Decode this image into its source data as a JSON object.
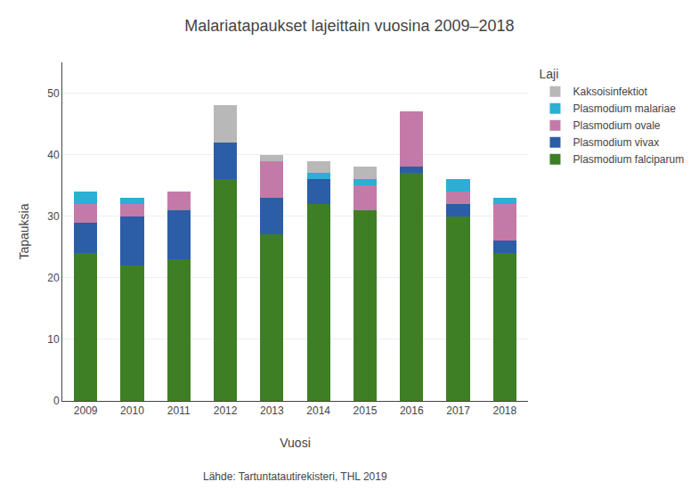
{
  "chart_data": {
    "type": "bar",
    "stacked": true,
    "title": "Malariatapaukset lajeittain vuosina 2009–2018",
    "xlabel": "Vuosi",
    "ylabel": "Tapauksia",
    "legend_title": "Laji",
    "annotations": [
      "Lähde: Tartuntatautirekisteri, THL 2019"
    ],
    "categories": [
      "2009",
      "2010",
      "2011",
      "2012",
      "2013",
      "2014",
      "2015",
      "2016",
      "2017",
      "2018"
    ],
    "series": [
      {
        "name": "Plasmodium falciparum",
        "color": "#3e7f25",
        "values": [
          24,
          22,
          23,
          36,
          27,
          32,
          31,
          37,
          30,
          24
        ]
      },
      {
        "name": "Plasmodium vivax",
        "color": "#2b5ea7",
        "values": [
          5,
          8,
          8,
          6,
          6,
          4,
          0,
          1,
          2,
          2
        ]
      },
      {
        "name": "Plasmodium ovale",
        "color": "#c47aa8",
        "values": [
          3,
          2,
          3,
          0,
          6,
          0,
          4,
          9,
          2,
          6
        ]
      },
      {
        "name": "Plasmodium malariae",
        "color": "#2bafd4",
        "values": [
          2,
          1,
          0,
          0,
          0,
          1,
          1,
          0,
          2,
          1
        ]
      },
      {
        "name": "Kaksoisinfektiot",
        "color": "#b8b8b8",
        "values": [
          0,
          0,
          0,
          6,
          1,
          2,
          2,
          0,
          0,
          0
        ]
      }
    ],
    "ylim": [
      0,
      55
    ],
    "yticks": [
      0,
      10,
      20,
      30,
      40,
      50
    ],
    "grid": "y",
    "legend": "upper right"
  }
}
